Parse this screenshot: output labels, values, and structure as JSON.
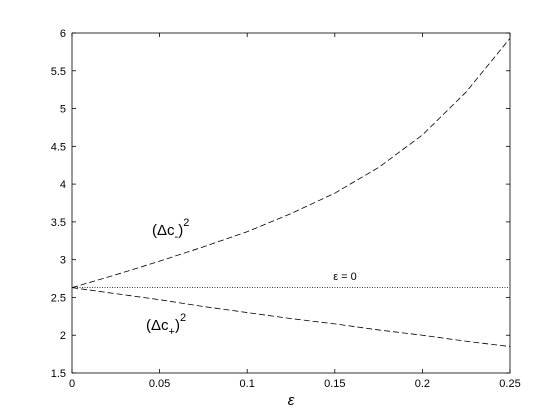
{
  "chart_data": {
    "type": "line",
    "x_label": "ε",
    "x": [
      0,
      0.025,
      0.05,
      0.075,
      0.1,
      0.125,
      0.15,
      0.175,
      0.2,
      0.225,
      0.25
    ],
    "series": [
      {
        "color": "#000000",
        "dash": "dashed",
        "values": [
          2.63,
          2.8,
          2.98,
          3.17,
          3.37,
          3.61,
          3.88,
          4.22,
          4.65,
          5.22,
          5.93
        ]
      },
      {
        "color": "#000000",
        "dash": "dashed",
        "values": [
          2.63,
          2.55,
          2.47,
          2.38,
          2.3,
          2.22,
          2.15,
          2.07,
          2.0,
          1.92,
          1.85
        ]
      },
      {
        "color": "#000000",
        "dash": "dotted",
        "values": [
          2.63,
          2.63,
          2.63,
          2.63,
          2.63,
          2.63,
          2.63,
          2.63,
          2.63,
          2.63,
          2.63
        ]
      }
    ],
    "annotations": [
      {
        "base": "(Δc",
        "sub": "-",
        "close": ")",
        "sup": "2"
      },
      {
        "base": "(Δc",
        "sub": "+",
        "close": ")",
        "sup": "2"
      },
      {
        "text": "ε = 0"
      }
    ],
    "xlim": [
      0,
      0.25
    ],
    "xticks": [
      0,
      0.05,
      0.1,
      0.15,
      0.2,
      0.25
    ],
    "ylim": [
      1.5,
      6
    ],
    "yticks": [
      1.5,
      2,
      2.5,
      3,
      3.5,
      4,
      4.5,
      5,
      5.5,
      6
    ]
  }
}
